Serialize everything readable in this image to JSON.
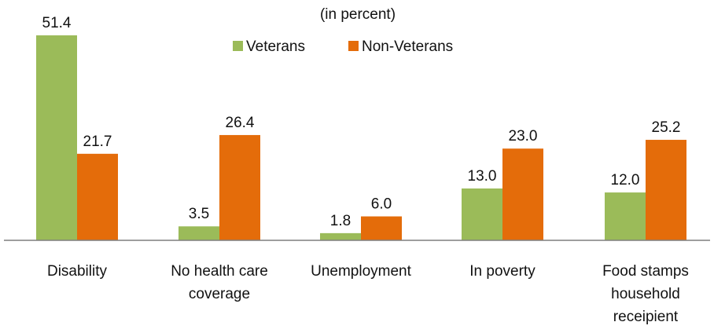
{
  "chart_data": {
    "type": "bar",
    "title": "",
    "subtitle": "(in percent)",
    "xlabel": "",
    "ylabel": "",
    "ylim": [
      0,
      51.4
    ],
    "grid": false,
    "legend_position": "top",
    "categories": [
      [
        "Disability"
      ],
      [
        "No health care",
        "coverage"
      ],
      [
        "Unemployment"
      ],
      [
        "In poverty"
      ],
      [
        "Food stamps",
        "household",
        "receipient"
      ]
    ],
    "series": [
      {
        "name": "Veterans",
        "color": "#9BBB59",
        "values": [
          51.4,
          3.5,
          1.8,
          13.0,
          12.0
        ],
        "labels": [
          "51.4",
          "3.5",
          "1.8",
          "13.0",
          "12.0"
        ]
      },
      {
        "name": "Non-Veterans",
        "color": "#E46C0A",
        "values": [
          21.7,
          26.4,
          6.0,
          23.0,
          25.2
        ],
        "labels": [
          "21.7",
          "26.4",
          "6.0",
          "23.0",
          "25.2"
        ]
      }
    ]
  }
}
